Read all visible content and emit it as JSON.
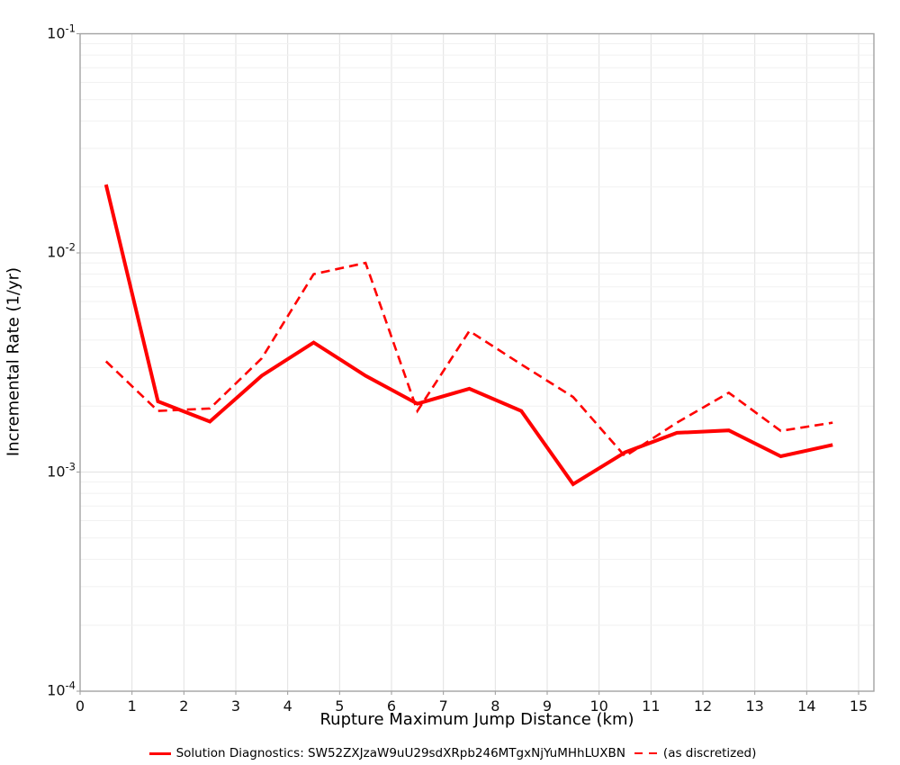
{
  "colors": {
    "series_red": "#ff0000",
    "plot_border": "#a3a3a3",
    "grid_major": "#e2e2e2",
    "grid_minor": "#f1f1f1",
    "tick": "#9a9a9a",
    "text": "#000000",
    "background": "#ffffff"
  },
  "chart_data": {
    "type": "line",
    "title": "",
    "xlabel": "Rupture Maximum Jump Distance (km)",
    "ylabel": "Incremental Rate (1/yr)",
    "x_axis_scale": "linear",
    "y_axis_scale": "log",
    "xlim": [
      0,
      15.3
    ],
    "ylim": [
      0.0001,
      0.1
    ],
    "grid": true,
    "legend_position": "bottom",
    "x_ticks": [
      0,
      1,
      2,
      3,
      4,
      5,
      6,
      7,
      8,
      9,
      10,
      11,
      12,
      13,
      14,
      15
    ],
    "y_ticks": [
      {
        "base": "10",
        "exp": "-1",
        "value": 0.1
      },
      {
        "base": "10",
        "exp": "-2",
        "value": 0.01
      },
      {
        "base": "10",
        "exp": "-3",
        "value": 0.001
      },
      {
        "base": "10",
        "exp": "-4",
        "value": 0.0001
      }
    ],
    "x": [
      0.5,
      1.5,
      2.5,
      3.5,
      4.5,
      5.5,
      6.5,
      7.5,
      8.5,
      9.5,
      10.5,
      11.5,
      12.5,
      13.5,
      14.5
    ],
    "series": [
      {
        "name": "Solution Diagnostics: SW52ZXJzaW9uU29sdXRpb246MTgxNjYuMHhLUXBN",
        "style": "solid",
        "color": "#ff0000",
        "values": [
          0.0205,
          0.0021,
          0.0017,
          0.00275,
          0.0039,
          0.00275,
          0.00205,
          0.0024,
          0.0019,
          0.00088,
          0.00123,
          0.00151,
          0.00155,
          0.00118,
          0.00133
        ]
      },
      {
        "name": "(as discretized)",
        "style": "dashed",
        "color": "#ff0000",
        "values": [
          0.0032,
          0.0019,
          0.00195,
          0.0033,
          0.008,
          0.009,
          0.0019,
          0.0044,
          0.0031,
          0.0022,
          0.00118,
          0.00168,
          0.0023,
          0.00154,
          0.00168
        ]
      }
    ]
  }
}
